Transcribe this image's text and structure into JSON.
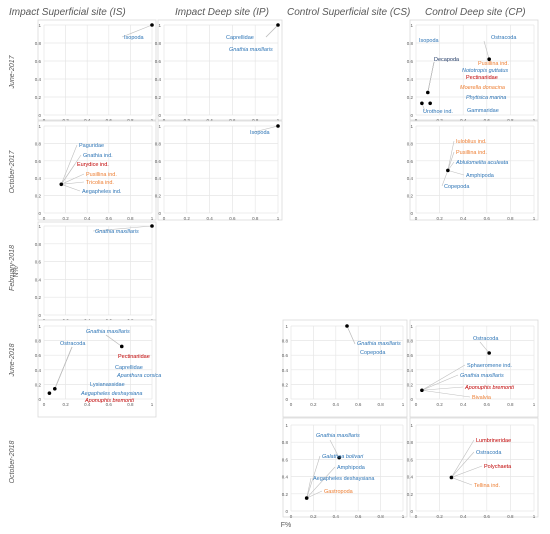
{
  "figure": {
    "x_axis_label": "F%",
    "y_axis_label": "N%",
    "columns": [
      "Impact Superficial site (IS)",
      "Impact Deep site (IP)",
      "Control Superficial site (CS)",
      "Control Deep site (CP)"
    ],
    "rows": [
      "June-2017",
      "October-2017",
      "February-2018",
      "June-2018",
      "October-2018"
    ],
    "ticks": [
      "0",
      "0.2",
      "0.4",
      "0.6",
      "0.8",
      "1"
    ],
    "colors": {
      "blue": "#2e75b6",
      "orange": "#ed7d31",
      "red": "#c00000",
      "navy": "#1f3864",
      "italic_blue": "#2e75b6"
    }
  },
  "chart_data": [
    {
      "type": "scatter",
      "column": "Impact Superficial site (IS)",
      "row": "June-2017",
      "xlim": [
        0,
        1
      ],
      "ylim": [
        0,
        1
      ],
      "points": [
        {
          "x": 1.0,
          "y": 1.0,
          "labels": [
            {
              "text": "Isopoda",
              "color": "blue",
              "italic": false
            }
          ]
        }
      ]
    },
    {
      "type": "scatter",
      "column": "Impact Deep site (IP)",
      "row": "June-2017",
      "xlim": [
        0,
        1
      ],
      "ylim": [
        0,
        1
      ],
      "points": [
        {
          "x": 1.0,
          "y": 1.0,
          "labels": [
            {
              "text": "Caprellidae",
              "color": "blue",
              "italic": false
            },
            {
              "text": "Gnathia maxillaris",
              "color": "blue",
              "italic": true
            }
          ]
        }
      ]
    },
    {
      "type": "scatter",
      "column": "Control Deep site (CP)",
      "row": "June-2017",
      "xlim": [
        0,
        1
      ],
      "ylim": [
        0,
        1
      ],
      "points": [
        {
          "x": 0.62,
          "y": 0.62,
          "labels": [
            {
              "text": "Ostracoda",
              "color": "blue",
              "italic": false
            }
          ]
        },
        {
          "x": 0.1,
          "y": 0.25,
          "labels": [
            {
              "text": "Isopoda",
              "color": "blue",
              "italic": false
            },
            {
              "text": "Decapoda",
              "color": "navy",
              "italic": false
            },
            {
              "text": "Pusillina ind.",
              "color": "orange",
              "italic": false
            },
            {
              "text": "Nototropis guttatus",
              "color": "blue",
              "italic": true
            },
            {
              "text": "Pectinariidae",
              "color": "red",
              "italic": false
            },
            {
              "text": "Moerella donacina",
              "color": "orange",
              "italic": true
            },
            {
              "text": "Phytisica marina",
              "color": "blue",
              "italic": true
            },
            {
              "text": "Gammaridae",
              "color": "blue",
              "italic": false
            }
          ]
        },
        {
          "x": 0.05,
          "y": 0.13,
          "labels": [
            {
              "text": "Urothoe ind.",
              "color": "blue",
              "italic": false
            }
          ]
        },
        {
          "x": 0.12,
          "y": 0.13,
          "labels": []
        }
      ]
    },
    {
      "type": "scatter",
      "column": "Impact Superficial site (IS)",
      "row": "October-2017",
      "xlim": [
        0,
        1
      ],
      "ylim": [
        0,
        1
      ],
      "points": [
        {
          "x": 0.16,
          "y": 0.33,
          "labels": [
            {
              "text": "Paguridae",
              "color": "blue",
              "italic": false
            },
            {
              "text": "Gnathia ind.",
              "color": "blue",
              "italic": false
            },
            {
              "text": "Eurydice ind.",
              "color": "red",
              "italic": false
            },
            {
              "text": "Pusillina ind.",
              "color": "orange",
              "italic": false
            },
            {
              "text": "Tricolia ind.",
              "color": "orange",
              "italic": false
            },
            {
              "text": "Aegapheles ind.",
              "color": "blue",
              "italic": false
            }
          ]
        }
      ]
    },
    {
      "type": "scatter",
      "column": "Impact Deep site (IP)",
      "row": "October-2017",
      "xlim": [
        0,
        1
      ],
      "ylim": [
        0,
        1
      ],
      "points": [
        {
          "x": 1.0,
          "y": 1.0,
          "labels": [
            {
              "text": "Isopoda",
              "color": "blue",
              "italic": false
            }
          ]
        }
      ]
    },
    {
      "type": "scatter",
      "column": "Control Deep site (CP)",
      "row": "October-2017",
      "xlim": [
        0,
        1
      ],
      "ylim": [
        0,
        1
      ],
      "points": [
        {
          "x": 0.27,
          "y": 0.49,
          "labels": [
            {
              "text": "Iuloblius ind.",
              "color": "orange",
              "italic": false
            },
            {
              "text": "Pusillina ind.",
              "color": "orange",
              "italic": false
            },
            {
              "text": "Ablulomelita aculeata",
              "color": "blue",
              "italic": true
            },
            {
              "text": "Amphipoda",
              "color": "blue",
              "italic": false
            },
            {
              "text": "Copepoda",
              "color": "blue",
              "italic": false
            }
          ]
        }
      ]
    },
    {
      "type": "scatter",
      "column": "Impact Superficial site (IS)",
      "row": "February-2018",
      "xlim": [
        0,
        1
      ],
      "ylim": [
        0,
        1
      ],
      "points": [
        {
          "x": 1.0,
          "y": 1.0,
          "labels": [
            {
              "text": "Gnathia maxillaris",
              "color": "blue",
              "italic": true
            }
          ]
        }
      ]
    },
    {
      "type": "scatter",
      "column": "Impact Superficial site (IS)",
      "row": "June-2018",
      "xlim": [
        0,
        1
      ],
      "ylim": [
        0,
        1
      ],
      "points": [
        {
          "x": 0.72,
          "y": 0.72,
          "labels": [
            {
              "text": "Gnathia maxillaris",
              "color": "blue",
              "italic": true
            },
            {
              "text": "Pectinariidae",
              "color": "red",
              "italic": false
            }
          ]
        },
        {
          "x": 0.1,
          "y": 0.14,
          "labels": [
            {
              "text": "Ostracoda",
              "color": "blue",
              "italic": false
            },
            {
              "text": "Caprellidae",
              "color": "blue",
              "italic": false
            },
            {
              "text": "Apanthura corsica",
              "color": "blue",
              "italic": true
            },
            {
              "text": "Lysianassidae",
              "color": "blue",
              "italic": false
            },
            {
              "text": "Aegapheles deshaysiana",
              "color": "blue",
              "italic": true
            },
            {
              "text": "Aponuphis bremonti",
              "color": "red",
              "italic": true
            }
          ]
        },
        {
          "x": 0.05,
          "y": 0.08,
          "labels": []
        }
      ]
    },
    {
      "type": "scatter",
      "column": "Control Superficial site (CS)",
      "row": "June-2018",
      "xlim": [
        0,
        1
      ],
      "ylim": [
        0,
        1
      ],
      "points": [
        {
          "x": 0.5,
          "y": 1.0,
          "labels": [
            {
              "text": "Gnathia maxillaris",
              "color": "blue",
              "italic": true
            },
            {
              "text": "Copepoda",
              "color": "blue",
              "italic": false
            }
          ]
        }
      ]
    },
    {
      "type": "scatter",
      "column": "Control Deep site (CP)",
      "row": "June-2018",
      "xlim": [
        0,
        1
      ],
      "ylim": [
        0,
        1
      ],
      "points": [
        {
          "x": 0.62,
          "y": 0.63,
          "labels": [
            {
              "text": "Ostracoda",
              "color": "blue",
              "italic": false
            }
          ]
        },
        {
          "x": 0.05,
          "y": 0.12,
          "labels": [
            {
              "text": "Sphaeromene ind.",
              "color": "blue",
              "italic": false
            },
            {
              "text": "Gnathia maxillaris",
              "color": "blue",
              "italic": true
            },
            {
              "text": "Aponuphis bremonti",
              "color": "red",
              "italic": true
            },
            {
              "text": "Bivalvia",
              "color": "orange",
              "italic": false
            }
          ]
        }
      ]
    },
    {
      "type": "scatter",
      "column": "Control Superficial site (CS)",
      "row": "October-2018",
      "xlim": [
        0,
        1
      ],
      "ylim": [
        0,
        1
      ],
      "points": [
        {
          "x": 0.43,
          "y": 0.62,
          "labels": [
            {
              "text": "Gnathia maxillaris",
              "color": "blue",
              "italic": true
            }
          ]
        },
        {
          "x": 0.14,
          "y": 0.15,
          "labels": [
            {
              "text": "Galathea bolivari",
              "color": "blue",
              "italic": true
            },
            {
              "text": "Amphipoda",
              "color": "blue",
              "italic": false
            },
            {
              "text": "Aegapheles deshaysiana",
              "color": "blue",
              "italic": false
            },
            {
              "text": "Gastropoda",
              "color": "orange",
              "italic": false
            }
          ]
        }
      ]
    },
    {
      "type": "scatter",
      "column": "Control Deep site (CP)",
      "row": "October-2018",
      "xlim": [
        0,
        1
      ],
      "ylim": [
        0,
        1
      ],
      "points": [
        {
          "x": 0.3,
          "y": 0.39,
          "labels": [
            {
              "text": "Lumbrineridae",
              "color": "red",
              "italic": false
            },
            {
              "text": "Ostracoda",
              "color": "blue",
              "italic": false
            },
            {
              "text": "Polychaeta",
              "color": "red",
              "italic": false
            },
            {
              "text": "Tellina ind.",
              "color": "orange",
              "italic": false
            }
          ]
        }
      ]
    }
  ]
}
